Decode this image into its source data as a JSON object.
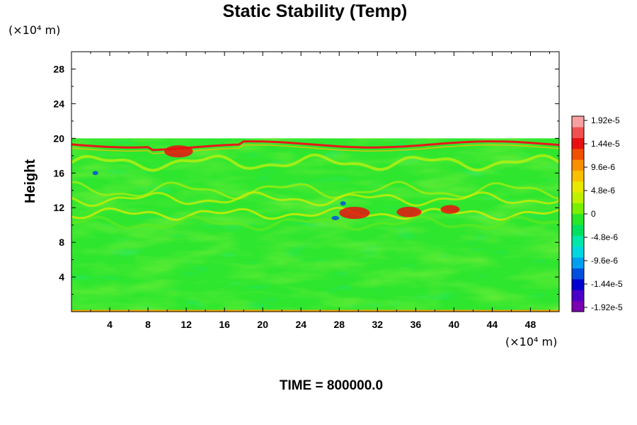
{
  "chart_data": {
    "type": "heatmap",
    "title": "Static Stability (Temp)",
    "xlabel": "",
    "ylabel": "Height",
    "x_units": "(×10⁴ m)",
    "y_units": "(×10⁴ m)",
    "xlim": [
      0,
      51
    ],
    "ylim": [
      0,
      30
    ],
    "x_ticks": [
      "4",
      "8",
      "12",
      "16",
      "20",
      "24",
      "28",
      "32",
      "36",
      "40",
      "44",
      "48"
    ],
    "y_ticks": [
      "4",
      "8",
      "12",
      "16",
      "20",
      "24",
      "28"
    ],
    "x_tick_values": [
      4,
      8,
      12,
      16,
      20,
      24,
      28,
      32,
      36,
      40,
      44,
      48
    ],
    "y_tick_values": [
      4,
      8,
      12,
      16,
      20,
      24,
      28
    ],
    "data_top": 20,
    "colorbar": {
      "labels": [
        "1.92e-5",
        "1.44e-5",
        "9.6e-6",
        "4.8e-6",
        "0",
        "-4.8e-6",
        "-9.6e-6",
        "-1.44e-5",
        "-1.92e-5"
      ],
      "range": [
        -1.92e-05,
        1.92e-05
      ],
      "colors": [
        "#7a00b0",
        "#4b00c8",
        "#0000d0",
        "#0050e0",
        "#00a0f0",
        "#00d8e0",
        "#00e8a8",
        "#00e060",
        "#28e628",
        "#78f000",
        "#c0f000",
        "#e8e800",
        "#f8c000",
        "#f89000",
        "#f05000",
        "#e81010",
        "#f05050",
        "#f8a0a0"
      ]
    },
    "grid": false,
    "legend": "right colorbar"
  },
  "footer": {
    "time_label": "TIME = 800000.0"
  }
}
